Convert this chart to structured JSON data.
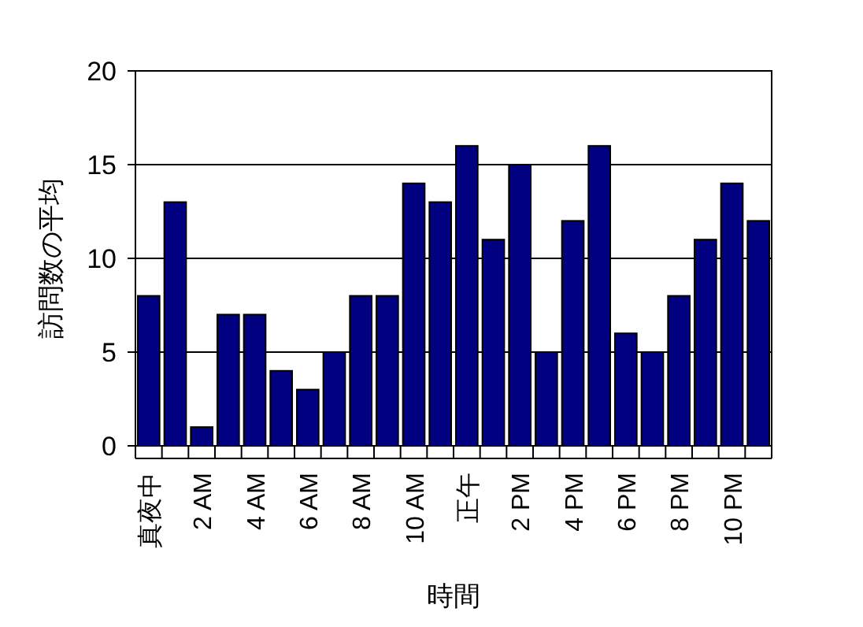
{
  "chart_data": {
    "type": "bar",
    "xlabel": "時間",
    "ylabel": "訪問数の平均",
    "categories": [
      "真夜中",
      null,
      "2 AM",
      null,
      "4 AM",
      null,
      "6 AM",
      null,
      "8 AM",
      null,
      "10 AM",
      null,
      "正午",
      null,
      "2 PM",
      null,
      "4 PM",
      null,
      "6 PM",
      null,
      "8 PM",
      null,
      "10 PM",
      null
    ],
    "values": [
      8,
      13,
      1,
      7,
      7,
      4,
      3,
      5,
      8,
      8,
      14,
      13,
      16,
      11,
      15,
      5,
      12,
      16,
      6,
      5,
      8,
      11,
      14,
      12
    ],
    "color": "#000080",
    "ylim": [
      0,
      20
    ],
    "yticks": [
      0,
      5,
      10,
      15,
      20
    ],
    "grid": "y"
  }
}
